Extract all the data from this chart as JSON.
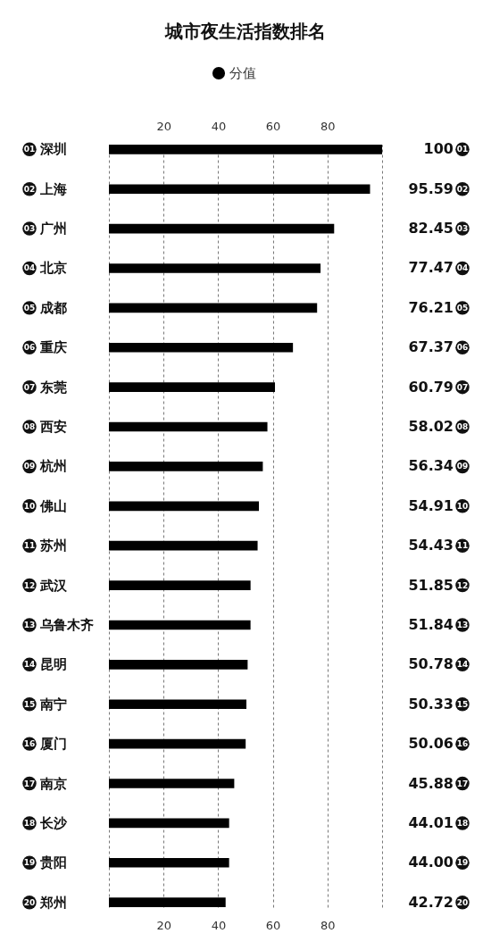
{
  "chart_data": {
    "type": "bar",
    "orientation": "horizontal",
    "title": "城市夜生活指数排名",
    "categories": [
      "深圳",
      "上海",
      "广州",
      "北京",
      "成都",
      "重庆",
      "东莞",
      "西安",
      "杭州",
      "佛山",
      "苏州",
      "武汉",
      "乌鲁木齐",
      "昆明",
      "南宁",
      "厦门",
      "南京",
      "长沙",
      "贵阳",
      "郑州"
    ],
    "series": [
      {
        "name": "分值",
        "color": "#000000",
        "values": [
          100,
          95.59,
          82.45,
          77.47,
          76.21,
          67.37,
          60.79,
          58.02,
          56.34,
          54.91,
          54.43,
          51.85,
          51.84,
          50.78,
          50.33,
          50.06,
          45.88,
          44.01,
          44.0,
          42.72
        ],
        "value_labels": [
          "100",
          "95.59",
          "82.45",
          "77.47",
          "76.21",
          "67.37",
          "60.79",
          "58.02",
          "56.34",
          "54.91",
          "54.43",
          "51.85",
          "51.84",
          "50.78",
          "50.33",
          "50.06",
          "45.88",
          "44.01",
          "44.00",
          "42.72"
        ]
      }
    ],
    "annotations": [
      "01",
      "02",
      "03",
      "04",
      "05",
      "06",
      "07",
      "08",
      "09",
      "10",
      "11",
      "12",
      "13",
      "14",
      "15",
      "16",
      "17",
      "18",
      "19",
      "20"
    ],
    "x2lim": [
      0,
      100
    ],
    "x2ticks": [
      20,
      40,
      60,
      80
    ],
    "xlim": [
      0,
      100
    ],
    "xticks": [
      {
        "value": 0,
        "label": null
      },
      20,
      40,
      60,
      80,
      {
        "value": 100,
        "label": null
      }
    ],
    "grid": "x",
    "legend": "top"
  }
}
